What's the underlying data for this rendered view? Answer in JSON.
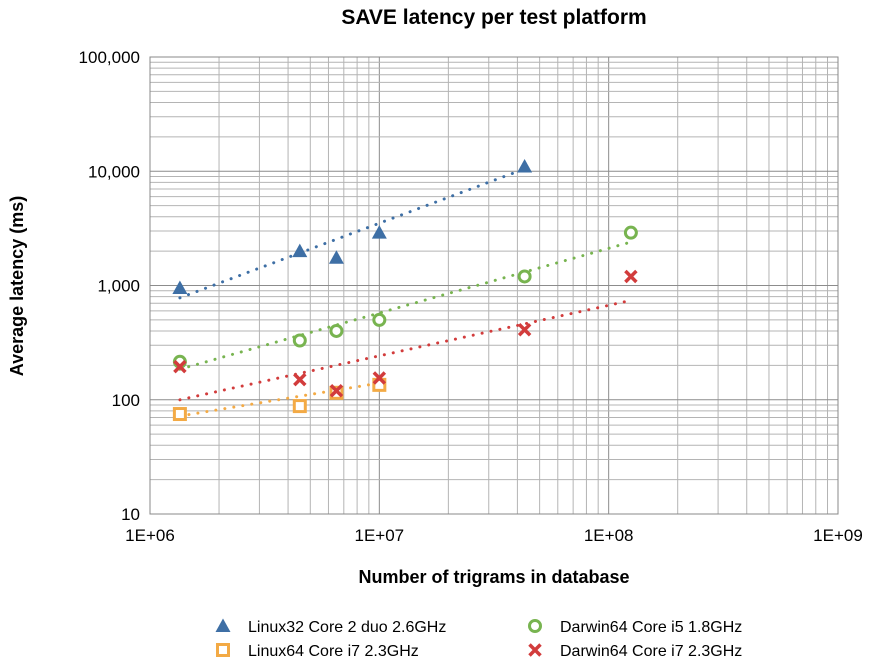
{
  "chart_data": {
    "type": "scatter",
    "title": "SAVE latency per test platform",
    "xlabel": "Number of trigrams in database",
    "ylabel": "Average latency (ms)",
    "x_scale": "log",
    "y_scale": "log",
    "xlim": [
      1000000,
      1000000000
    ],
    "ylim": [
      10,
      100000
    ],
    "x_ticks": [
      1000000,
      10000000,
      100000000,
      1000000000
    ],
    "x_tick_labels": [
      "1E+06",
      "1E+07",
      "1E+08",
      "1E+09"
    ],
    "y_ticks": [
      10,
      100,
      1000,
      10000,
      100000
    ],
    "y_tick_labels": [
      "10",
      "100",
      "1,000",
      "10,000",
      "100,000"
    ],
    "grid": true,
    "legend_position": "bottom",
    "series": [
      {
        "name": "Linux32 Core 2 duo 2.6GHz",
        "marker": "triangle",
        "color": "#3e6fa5",
        "x": [
          1350000,
          4500000,
          6500000,
          10000000,
          43000000
        ],
        "y": [
          950,
          2000,
          1750,
          2900,
          11000
        ],
        "trend": {
          "x0": 1350000,
          "y0": 780,
          "x1": 43000000,
          "y1": 10500
        }
      },
      {
        "name": "Linux64 Core i7 2.3GHz",
        "marker": "square",
        "color": "#f3aa45",
        "x": [
          1350000,
          4500000,
          6500000,
          10000000
        ],
        "y": [
          75,
          88,
          115,
          135
        ],
        "trend": {
          "x0": 1350000,
          "y0": 72,
          "x1": 10000000,
          "y1": 140
        }
      },
      {
        "name": "Darwin64 Core i5 1.8GHz",
        "marker": "circle",
        "color": "#78b450",
        "x": [
          1350000,
          4500000,
          6500000,
          10000000,
          43000000,
          125000000
        ],
        "y": [
          215,
          330,
          400,
          500,
          1200,
          2900
        ],
        "trend": {
          "x0": 1350000,
          "y0": 185,
          "x1": 125000000,
          "y1": 2400
        }
      },
      {
        "name": "Darwin64 Core i7 2.3GHz",
        "marker": "cross",
        "color": "#d23c3c",
        "x": [
          1350000,
          4500000,
          6500000,
          10000000,
          43000000,
          125000000
        ],
        "y": [
          195,
          150,
          120,
          155,
          410,
          1200
        ],
        "trend": {
          "x0": 1350000,
          "y0": 100,
          "x1": 125000000,
          "y1": 740
        }
      }
    ]
  }
}
